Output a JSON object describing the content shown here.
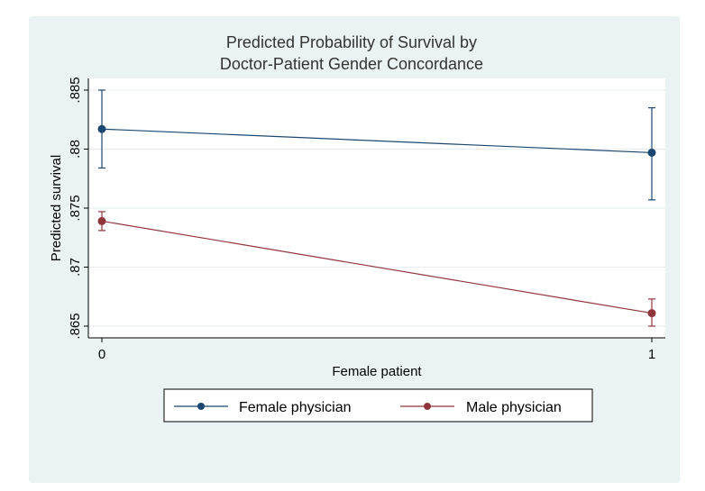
{
  "chart_data": {
    "type": "line",
    "title": [
      "Predicted Probability of Survival by",
      "Doctor-Patient Gender Concordance"
    ],
    "xlabel": "Female patient",
    "ylabel": "Predicted survival",
    "categories": [
      "0",
      "1"
    ],
    "x": [
      0,
      1
    ],
    "ylim": [
      0.865,
      0.885
    ],
    "yticks": [
      ".865",
      ".87",
      ".875",
      ".88",
      ".885"
    ],
    "grid": true,
    "legend_position": "bottom",
    "series": [
      {
        "name": "Female physician",
        "color": "#1a476f",
        "values": [
          0.8817,
          0.8797
        ],
        "ci_low": [
          0.8784,
          0.8757
        ],
        "ci_high": [
          0.885,
          0.8835
        ]
      },
      {
        "name": "Male physician",
        "color": "#90353b",
        "values": [
          0.8739,
          0.8661
        ],
        "ci_low": [
          0.8731,
          0.865
        ],
        "ci_high": [
          0.8747,
          0.8673
        ]
      }
    ]
  }
}
